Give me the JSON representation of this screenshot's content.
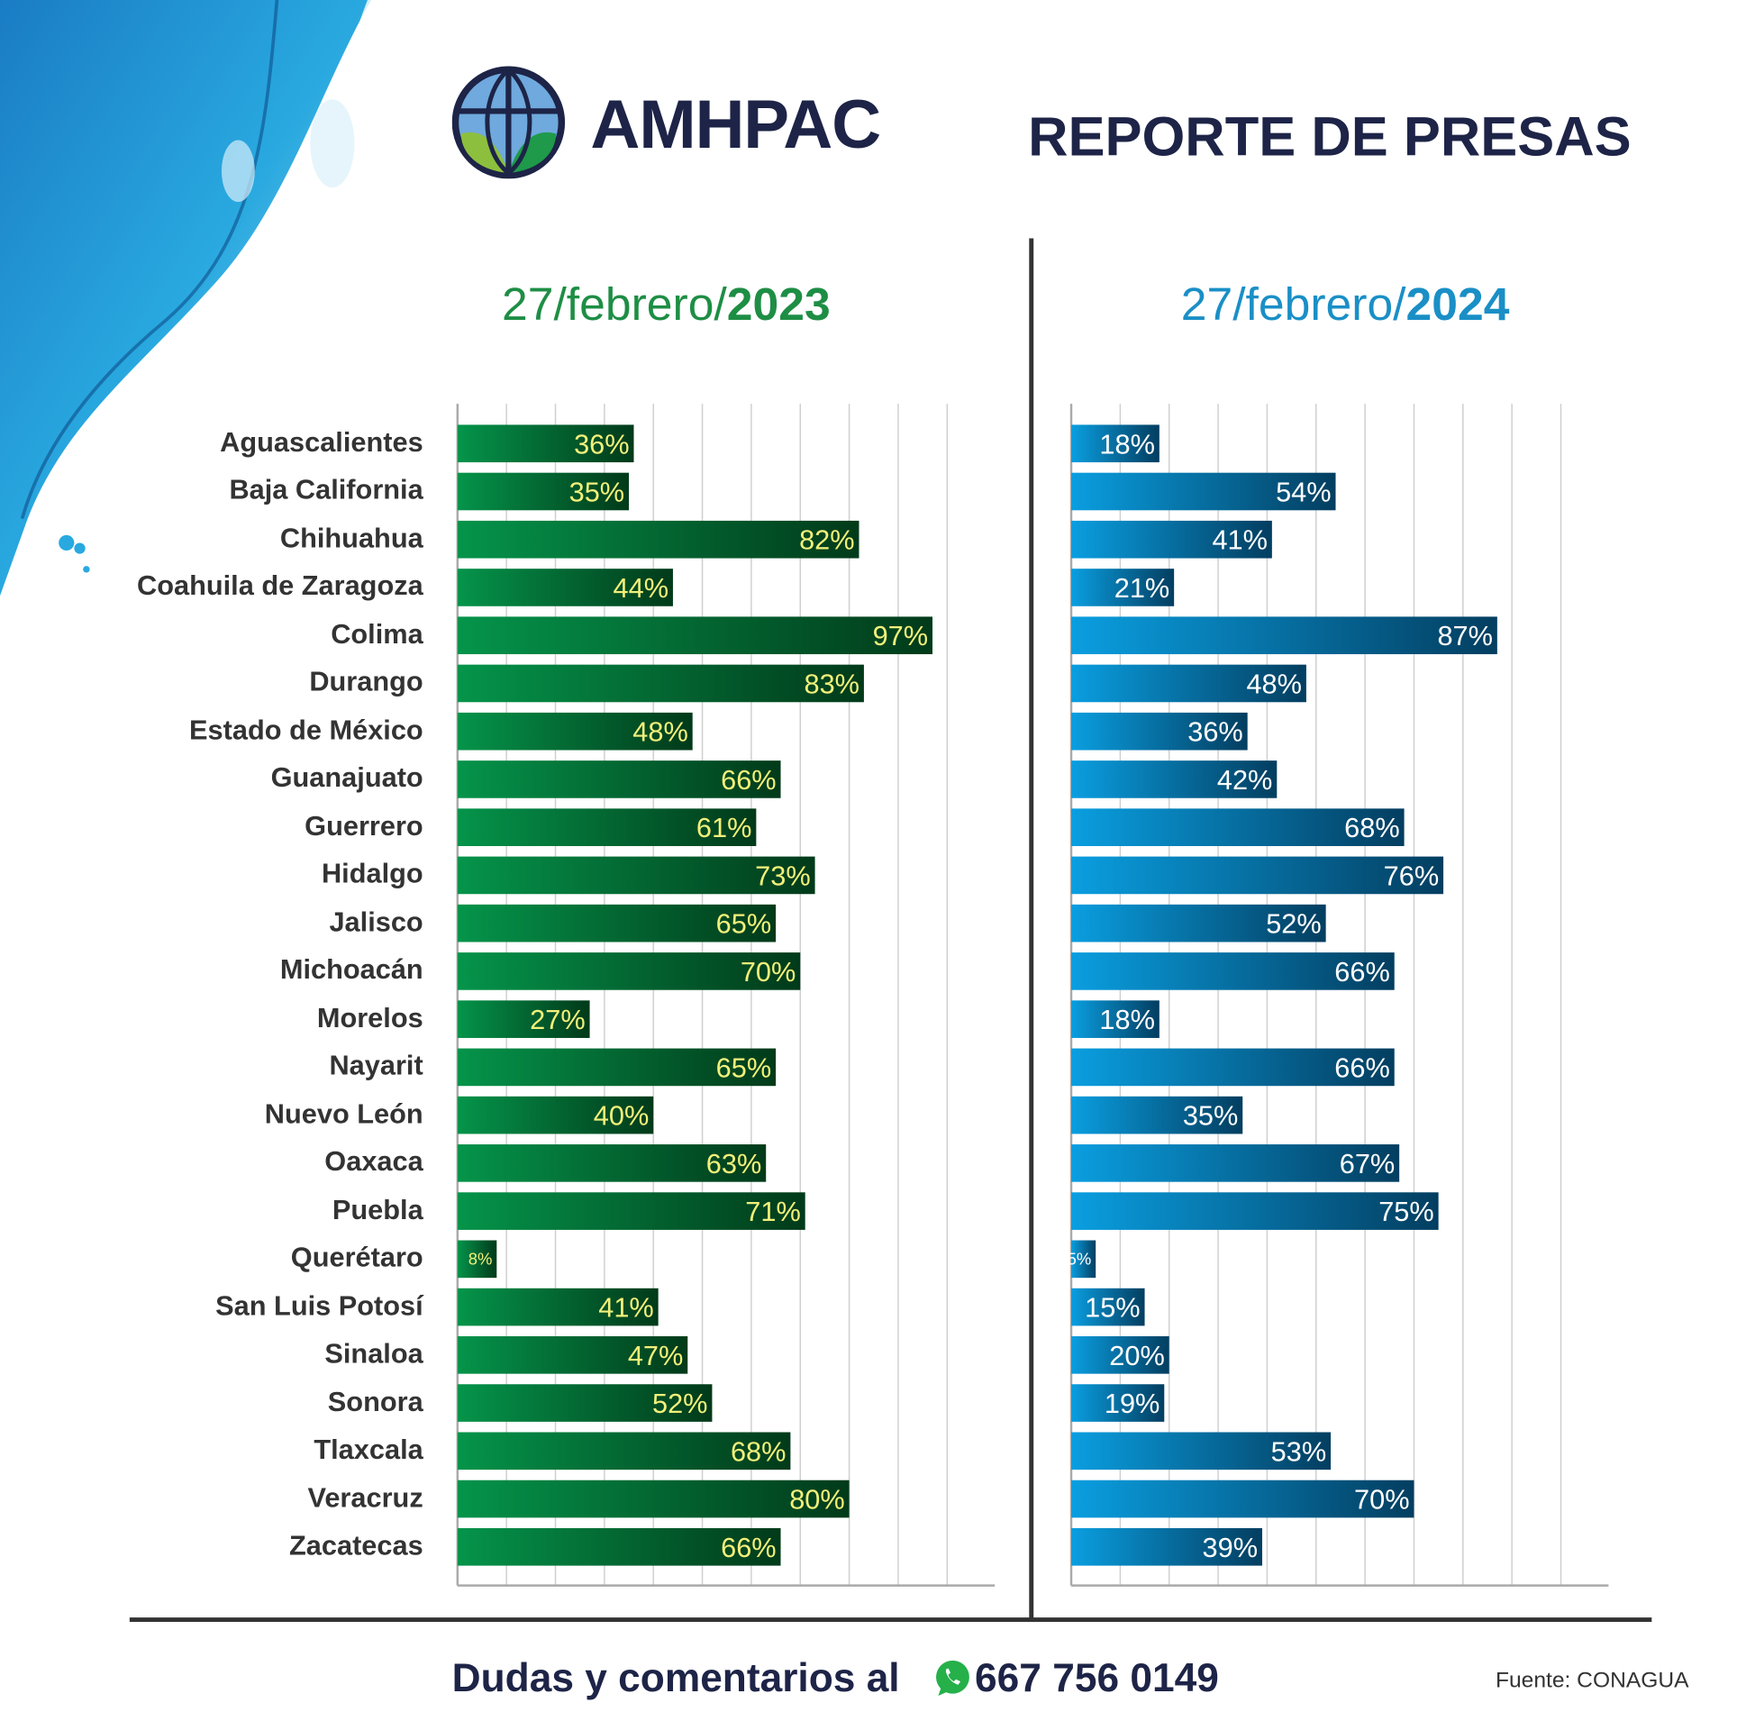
{
  "header": {
    "brand": "AMHPAC",
    "title": "REPORTE DE PRESAS"
  },
  "charts_header": {
    "left": {
      "prefix": "27/febrero/",
      "year": "2023"
    },
    "right": {
      "prefix": "27/febrero/",
      "year": "2024"
    }
  },
  "footer": {
    "text": "Dudas y comentarios al",
    "phone": "667 756 0149",
    "source": "Fuente: CONAGUA"
  },
  "colors": {
    "green_start": "#05944a",
    "green_end": "#013a1a",
    "green_label": "#f2f07a",
    "blue_start": "#0a9ee0",
    "blue_end": "#033e60",
    "blue_label": "#ffffff",
    "navy": "#1d2447"
  },
  "chart_data": [
    {
      "type": "bar",
      "orientation": "horizontal",
      "title": "27/febrero/2023",
      "xlim": [
        0,
        100
      ],
      "grid": true,
      "unit": "%",
      "categories": [
        "Aguascalientes",
        "Baja California",
        "Chihuahua",
        "Coahuila de Zaragoza",
        "Colima",
        "Durango",
        "Estado de México",
        "Guanajuato",
        "Guerrero",
        "Hidalgo",
        "Jalisco",
        "Michoacán",
        "Morelos",
        "Nayarit",
        "Nuevo León",
        "Oaxaca",
        "Puebla",
        "Querétaro",
        "San Luis Potosí",
        "Sinaloa",
        "Sonora",
        "Tlaxcala",
        "Veracruz",
        "Zacatecas"
      ],
      "values": [
        36,
        35,
        82,
        44,
        97,
        83,
        48,
        66,
        61,
        73,
        65,
        70,
        27,
        65,
        40,
        63,
        71,
        8,
        41,
        47,
        52,
        68,
        80,
        66
      ]
    },
    {
      "type": "bar",
      "orientation": "horizontal",
      "title": "27/febrero/2024",
      "xlim": [
        0,
        100
      ],
      "grid": true,
      "unit": "%",
      "categories": [
        "Aguascalientes",
        "Baja California",
        "Chihuahua",
        "Coahuila de Zaragoza",
        "Colima",
        "Durango",
        "Estado de México",
        "Guanajuato",
        "Guerrero",
        "Hidalgo",
        "Jalisco",
        "Michoacán",
        "Morelos",
        "Nayarit",
        "Nuevo León",
        "Oaxaca",
        "Puebla",
        "Querétaro",
        "San Luis Potosí",
        "Sinaloa",
        "Sonora",
        "Tlaxcala",
        "Veracruz",
        "Zacatecas"
      ],
      "values": [
        18,
        54,
        41,
        21,
        87,
        48,
        36,
        42,
        68,
        76,
        52,
        66,
        18,
        66,
        35,
        67,
        75,
        5,
        15,
        20,
        19,
        53,
        70,
        39
      ]
    }
  ]
}
